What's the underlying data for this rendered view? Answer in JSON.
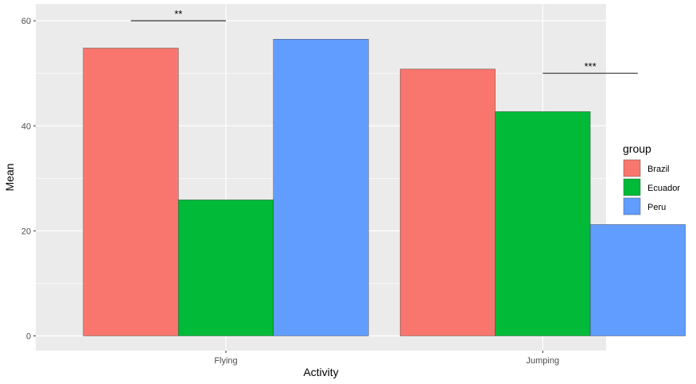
{
  "chart_data": {
    "type": "bar",
    "title": "",
    "xlabel": "Activity",
    "ylabel": "Mean",
    "categories": [
      "Flying",
      "Jumping"
    ],
    "ylim": [
      -2.8,
      63.2
    ],
    "yticks": [
      0,
      20,
      40,
      60
    ],
    "grid": true,
    "legend": {
      "title": "group",
      "placement": "right"
    },
    "series": [
      {
        "name": "Brazil",
        "color": "#F8766D",
        "values": [
          54.8,
          50.8
        ]
      },
      {
        "name": "Ecuador",
        "color": "#00BA38",
        "values": [
          25.9,
          42.7
        ]
      },
      {
        "name": "Peru",
        "color": "#619CFF",
        "values": [
          56.5,
          21.2
        ]
      }
    ],
    "annotations": [
      {
        "label": "**",
        "category": "Flying",
        "from_group": "Brazil",
        "to_group": "Ecuador",
        "y": 60
      },
      {
        "label": "***",
        "category": "Jumping",
        "from_group": "Ecuador",
        "to_group": "Peru",
        "y": 50
      }
    ]
  }
}
